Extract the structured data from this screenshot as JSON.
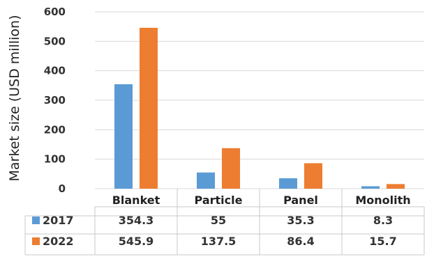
{
  "chart_data": {
    "type": "bar",
    "title": "",
    "xlabel": "",
    "ylabel": "Market size (USD million)",
    "ylim": [
      0,
      600
    ],
    "yticks": [
      0,
      100,
      200,
      300,
      400,
      500,
      600
    ],
    "grid": true,
    "legend": "data-table",
    "categories": [
      "Blanket",
      "Particle",
      "Panel",
      "Monolith"
    ],
    "series": [
      {
        "name": "2017",
        "color": "#5B9BD5",
        "values": [
          354.3,
          55,
          35.3,
          8.3
        ],
        "labels": [
          "354.3",
          "55",
          "35.3",
          "8.3"
        ]
      },
      {
        "name": "2022",
        "color": "#ED7D31",
        "values": [
          545.9,
          137.5,
          86.4,
          15.7
        ],
        "labels": [
          "545.9",
          "137.5",
          "86.4",
          "15.7"
        ]
      }
    ]
  }
}
